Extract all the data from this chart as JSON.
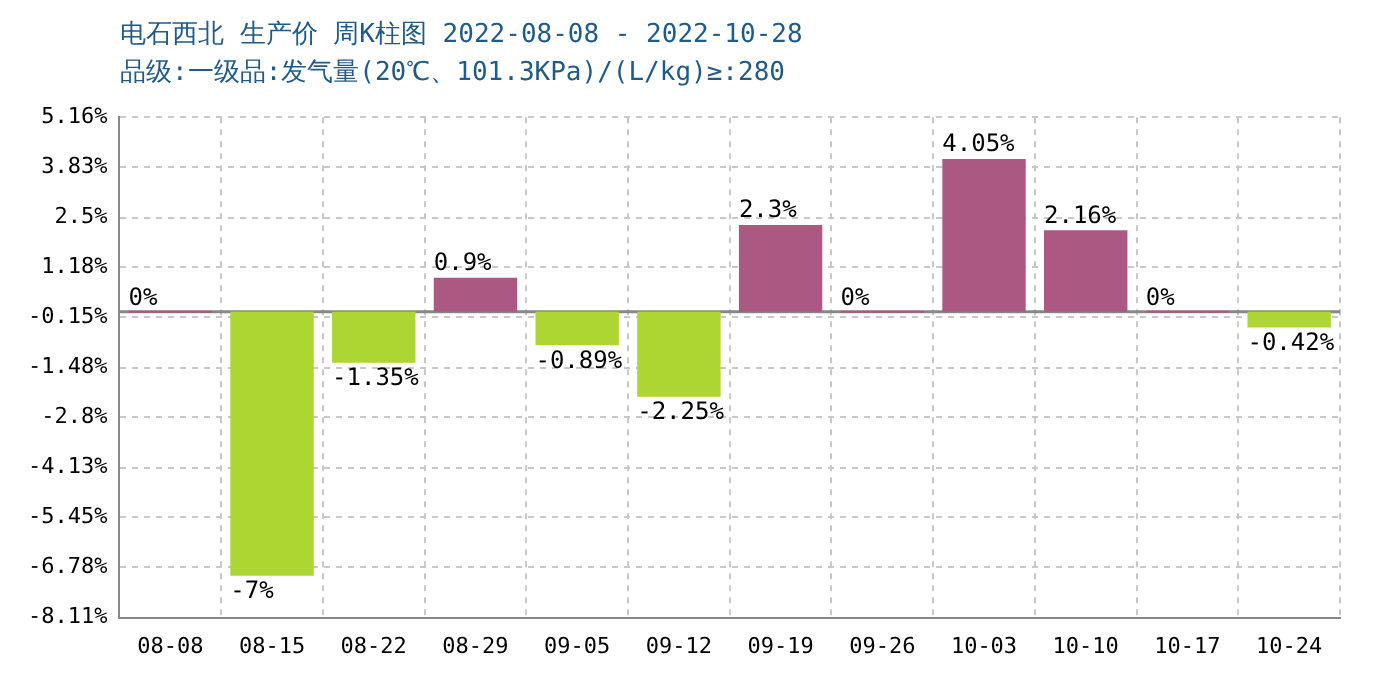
{
  "chart_data": {
    "type": "bar",
    "title": "电石西北 生产价 周K柱图 2022-08-08 - 2022-10-28",
    "subtitle": "品级:一级品:发气量(20℃、101.3KPa)/(L/kg)≥:280",
    "categories": [
      "08-08",
      "08-15",
      "08-22",
      "08-29",
      "09-05",
      "09-12",
      "09-19",
      "09-26",
      "10-03",
      "10-10",
      "10-17",
      "10-24"
    ],
    "values": [
      0,
      -7,
      -1.35,
      0.9,
      -0.89,
      -2.25,
      2.3,
      0,
      4.05,
      2.16,
      0,
      -0.42
    ],
    "colors": [
      "#ab5982",
      "#add633",
      "#add633",
      "#ab5982",
      "#add633",
      "#add633",
      "#ab5982",
      "#ab5982",
      "#ab5982",
      "#ab5982",
      "#ab5982",
      "#add633"
    ],
    "value_labels": [
      "0%",
      "-7%",
      "-1.35%",
      "0.9%",
      "-0.89%",
      "-2.25%",
      "2.3%",
      "0%",
      "4.05%",
      "2.16%",
      "0%",
      "-0.42%"
    ],
    "ylim": [
      -8.11,
      5.16
    ],
    "yticks": [
      {
        "value": 5.16,
        "label": "5.16%"
      },
      {
        "value": 3.83,
        "label": "3.83%"
      },
      {
        "value": 2.5,
        "label": "2.5%"
      },
      {
        "value": 1.18,
        "label": "1.18%"
      },
      {
        "value": -0.15,
        "label": "-0.15%"
      },
      {
        "value": -1.48,
        "label": "-1.48%"
      },
      {
        "value": -2.8,
        "label": "-2.8%"
      },
      {
        "value": -4.13,
        "label": "-4.13%"
      },
      {
        "value": -5.45,
        "label": "-5.45%"
      },
      {
        "value": -6.78,
        "label": "-6.78%"
      },
      {
        "value": -8.11,
        "label": "-8.11%"
      }
    ],
    "ref_lines": [
      {
        "axis": "y",
        "value": 0,
        "color": "#888888"
      }
    ],
    "grid": true
  }
}
